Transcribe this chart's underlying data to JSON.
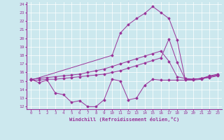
{
  "xlabel": "Windchill (Refroidissement éolien,°C)",
  "bg_color": "#cce8ee",
  "line_color": "#993399",
  "xlim": [
    -0.5,
    23.5
  ],
  "ylim": [
    11.7,
    24.3
  ],
  "yticks": [
    12,
    13,
    14,
    15,
    16,
    17,
    18,
    19,
    20,
    21,
    22,
    23,
    24
  ],
  "xticks": [
    0,
    1,
    2,
    3,
    4,
    5,
    6,
    7,
    8,
    9,
    10,
    11,
    12,
    13,
    14,
    15,
    16,
    17,
    18,
    19,
    20,
    21,
    22,
    23
  ],
  "series": {
    "line1_x": [
      0,
      1,
      2,
      3,
      4,
      5,
      6,
      7,
      8,
      9,
      10,
      11,
      12,
      13,
      14,
      15,
      16,
      17,
      18,
      19,
      20,
      21,
      22,
      23
    ],
    "line1_y": [
      15.2,
      14.8,
      15.1,
      13.6,
      13.4,
      12.5,
      12.7,
      12.0,
      12.0,
      12.8,
      15.2,
      15.0,
      12.8,
      13.0,
      14.5,
      15.2,
      15.1,
      15.1,
      15.1,
      15.1,
      15.1,
      15.2,
      15.5,
      15.7
    ],
    "line2_x": [
      0,
      10,
      11,
      12,
      13,
      14,
      15,
      16,
      17,
      18,
      19,
      20,
      21,
      22,
      23
    ],
    "line2_y": [
      15.1,
      18.0,
      20.6,
      21.6,
      22.3,
      22.9,
      23.7,
      23.0,
      22.3,
      19.8,
      15.2,
      15.2,
      15.3,
      15.4,
      15.6
    ],
    "line3_x": [
      0,
      1,
      2,
      3,
      4,
      5,
      6,
      7,
      8,
      9,
      10,
      11,
      12,
      13,
      14,
      15,
      16,
      17,
      18,
      19,
      20,
      21,
      22,
      23
    ],
    "line3_y": [
      15.2,
      15.3,
      15.4,
      15.5,
      15.6,
      15.7,
      15.8,
      16.0,
      16.2,
      16.4,
      16.7,
      17.0,
      17.3,
      17.6,
      17.9,
      18.2,
      18.5,
      17.3,
      15.5,
      15.3,
      15.2,
      15.3,
      15.6,
      15.8
    ],
    "line4_x": [
      0,
      1,
      2,
      3,
      4,
      5,
      6,
      7,
      8,
      9,
      10,
      11,
      12,
      13,
      14,
      15,
      16,
      17,
      18,
      19,
      20,
      21,
      22,
      23
    ],
    "line4_y": [
      15.1,
      15.1,
      15.2,
      15.2,
      15.3,
      15.4,
      15.5,
      15.6,
      15.7,
      15.8,
      16.0,
      16.2,
      16.5,
      16.8,
      17.1,
      17.4,
      17.7,
      19.9,
      17.2,
      15.2,
      15.2,
      15.3,
      15.5,
      15.7
    ]
  }
}
